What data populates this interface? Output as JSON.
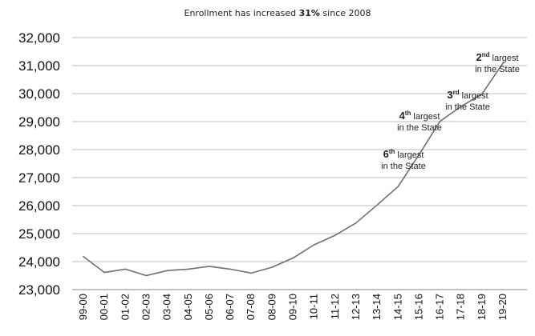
{
  "colors": {
    "line": "#6f6f6f",
    "grid": "#bdbdbd",
    "text": "#111111"
  },
  "chart_data": {
    "type": "line",
    "title_parts": {
      "before": "Enrollment has increased ",
      "emphasis": "31%",
      "after": " since 2008"
    },
    "categories": [
      "99-00",
      "00-01",
      "01-02",
      "02-03",
      "03-04",
      "04-05",
      "05-06",
      "06-07",
      "07-08",
      "08-09",
      "09-10",
      "10-11",
      "11-12",
      "12-13",
      "13-14",
      "14-15",
      "15-16",
      "16-17",
      "17-18",
      "18-19",
      "19-20"
    ],
    "series": [
      {
        "values": [
          24180,
          23610,
          23730,
          23500,
          23680,
          23730,
          23830,
          23730,
          23590,
          23800,
          24130,
          24600,
          24940,
          25380,
          26020,
          26680,
          27820,
          29010,
          29540,
          29980,
          31090
        ]
      }
    ],
    "yticks": [
      23000,
      24000,
      25000,
      26000,
      27000,
      28000,
      29000,
      30000,
      31000,
      32000
    ],
    "ytick_labels": [
      "23,000",
      "24,000",
      "25,000",
      "26,000",
      "27,000",
      "28,000",
      "29,000",
      "30,000",
      "31,000",
      "32,000"
    ],
    "ylim": [
      23000,
      32000
    ],
    "grid": true,
    "legend": "none",
    "annotations": [
      {
        "rank": "6",
        "suffix": "th",
        "line1_tail": " largest",
        "line2": "in the State",
        "category": "15-16"
      },
      {
        "rank": "4",
        "suffix": "th",
        "line1_tail": " largest",
        "line2": "in the State",
        "category": "16-17"
      },
      {
        "rank": "3",
        "suffix": "rd",
        "line1_tail": " largest",
        "line2": "in the State",
        "category": "17-18"
      },
      {
        "rank": "2",
        "suffix": "nd",
        "line1_tail": " largest",
        "line2": "in the State",
        "category": "19-20"
      }
    ]
  }
}
